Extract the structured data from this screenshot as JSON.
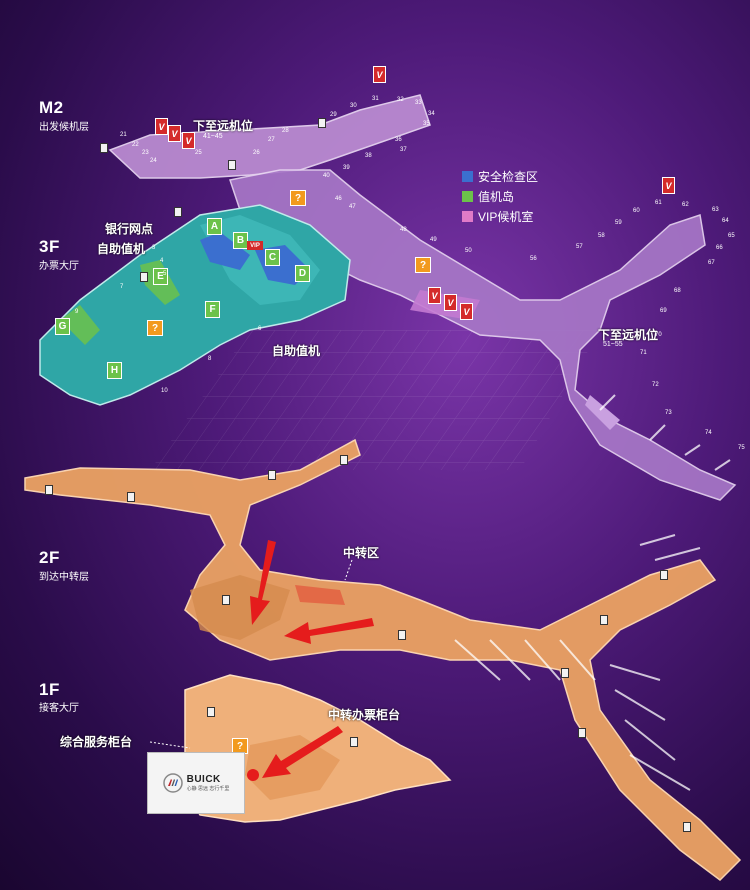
{
  "floors": {
    "m2": {
      "code": "M2",
      "name": "出发候机层"
    },
    "f3": {
      "code": "3F",
      "name": "办票大厅"
    },
    "f2": {
      "code": "2F",
      "name": "到达中转层"
    },
    "f1": {
      "code": "1F",
      "name": "接客大厅"
    }
  },
  "legend": [
    {
      "label": "安全检查区",
      "color": "#3b6fcf"
    },
    {
      "label": "值机岛",
      "color": "#6cc24a"
    },
    {
      "label": "VIP候机室",
      "color": "#e07ac8"
    }
  ],
  "areas": {
    "remote_stand_1": "下至远机位",
    "remote_stand_1_gates": "41~45",
    "remote_stand_2": "下至远机位",
    "remote_stand_2_gates": "51~55",
    "bank": "银行网点",
    "self_checkin_1": "自助值机",
    "self_checkin_2": "自助值机",
    "transfer_zone": "中转区",
    "transfer_counter": "中转办票柜台",
    "service_counter": "综合服务柜台"
  },
  "checkin_zones": [
    "A",
    "B",
    "C",
    "D",
    "E",
    "F",
    "G",
    "H"
  ],
  "vip_label": "VIP",
  "v_badge_label": "V",
  "info_label": "?",
  "gates_m2": [
    "21",
    "22",
    "23",
    "24",
    "25",
    "26",
    "27",
    "28",
    "29",
    "30",
    "31",
    "32",
    "33",
    "34",
    "35",
    "36",
    "37",
    "38",
    "39",
    "40",
    "46",
    "47",
    "48",
    "49",
    "50",
    "56",
    "57",
    "58",
    "59",
    "60",
    "61",
    "62",
    "63",
    "64",
    "65",
    "66",
    "67",
    "68",
    "69",
    "70",
    "71",
    "72",
    "73",
    "74",
    "75"
  ],
  "counter_rows_3f": [
    "3",
    "4",
    "5",
    "6",
    "7",
    "8",
    "9",
    "10"
  ],
  "brand": {
    "name": "BUICK",
    "tagline": "心静 思远 志行千里"
  },
  "colors": {
    "departure_floor": "#b98ad0",
    "checkin_floor": "#2fa6a6",
    "arrival_floor": "#e8a063",
    "arrow": "#e51c1c",
    "marker": "#e51c1c"
  }
}
